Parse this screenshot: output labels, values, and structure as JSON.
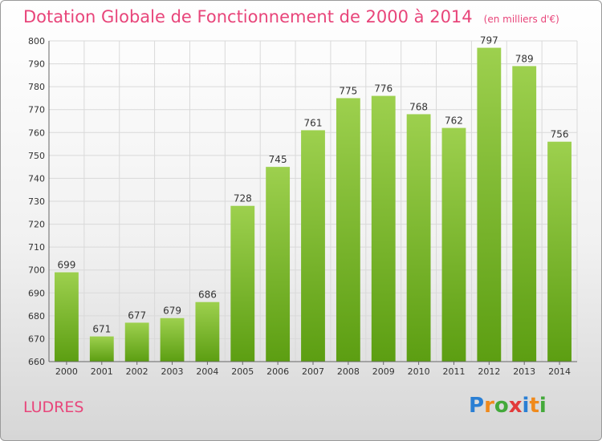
{
  "title": "Dotation Globale de Fonctionnement de 2000 à 2014",
  "unit": "(en milliers d'€)",
  "commune": "LUDRES",
  "logo_letters": [
    {
      "ch": "P",
      "color": "#2a7fd4"
    },
    {
      "ch": "r",
      "color": "#f08a1c"
    },
    {
      "ch": "o",
      "color": "#43a93a"
    },
    {
      "ch": "x",
      "color": "#e23b3b"
    },
    {
      "ch": "i",
      "color": "#2a7fd4"
    },
    {
      "ch": "t",
      "color": "#f08a1c"
    },
    {
      "ch": "i",
      "color": "#43a93a"
    }
  ],
  "colors": {
    "bar_top": "#9dd04e",
    "bar_bottom": "#5c9e12",
    "title": "#e8457a",
    "grid": "#d9d9d9"
  },
  "chart_data": {
    "type": "bar",
    "categories": [
      "2000",
      "2001",
      "2002",
      "2003",
      "2004",
      "2005",
      "2006",
      "2007",
      "2008",
      "2009",
      "2010",
      "2011",
      "2012",
      "2013",
      "2014"
    ],
    "values": [
      699,
      671,
      677,
      679,
      686,
      728,
      745,
      761,
      775,
      776,
      768,
      762,
      797,
      789,
      756
    ],
    "ylim": [
      660,
      800
    ],
    "yticks": [
      660,
      670,
      680,
      690,
      700,
      710,
      720,
      730,
      740,
      750,
      760,
      770,
      780,
      790,
      800
    ],
    "grid": true,
    "data_labels": true
  }
}
